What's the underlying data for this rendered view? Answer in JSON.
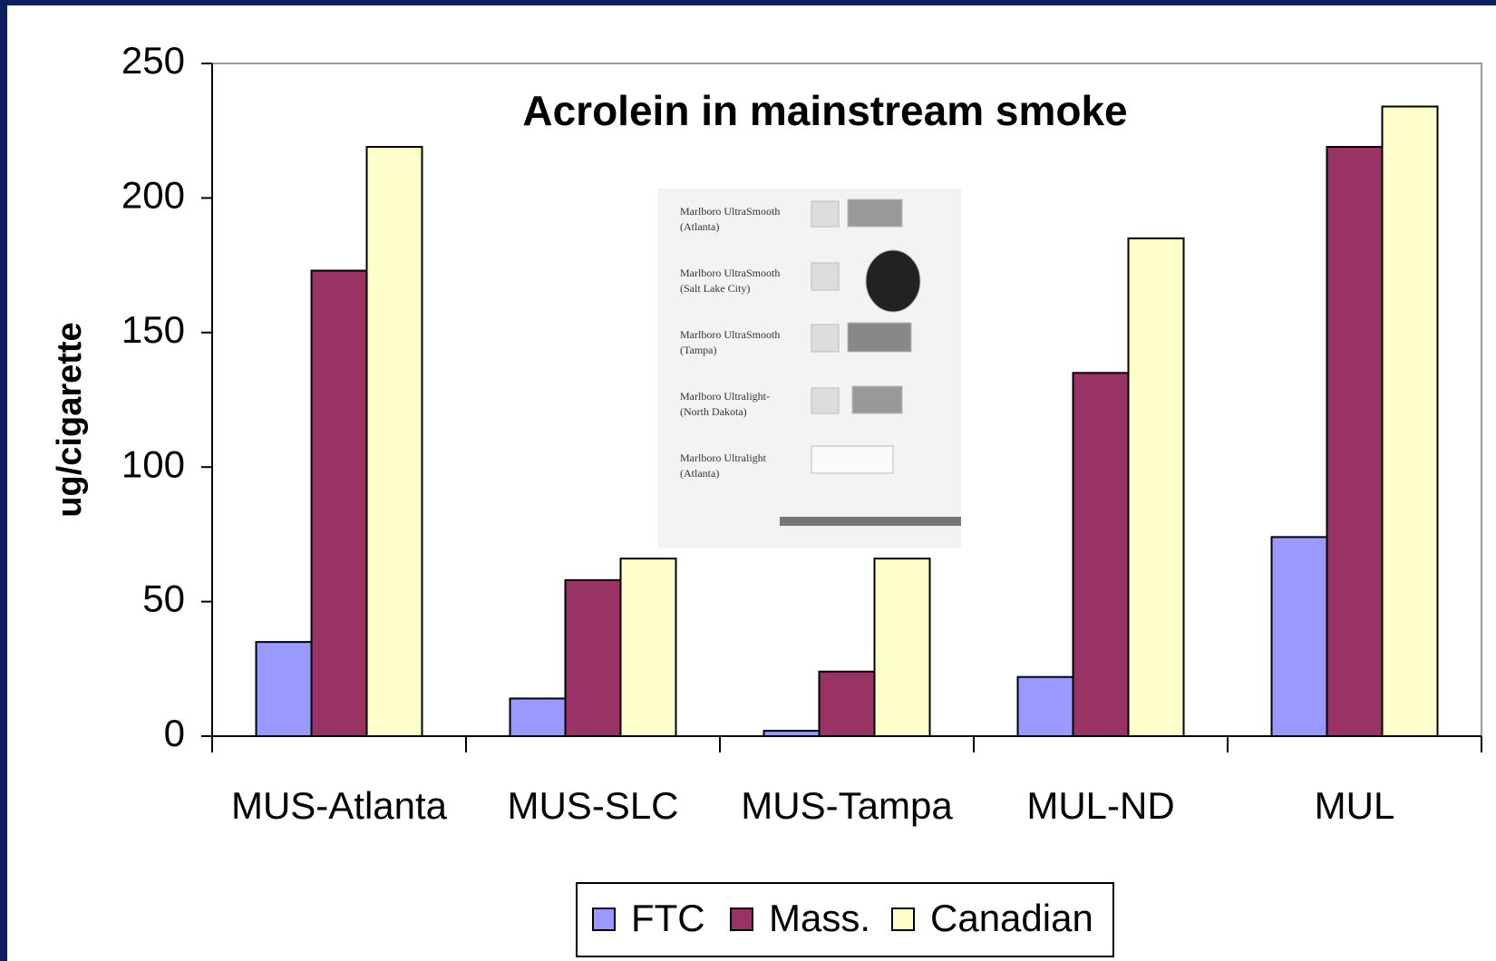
{
  "chart_data": {
    "type": "bar",
    "title": "Acrolein in mainstream smoke",
    "y_label": "ug/cigarette",
    "categories": [
      "MUS-Atlanta",
      "MUS-SLC",
      "MUS-Tampa",
      "MUL-ND",
      "MUL"
    ],
    "series": [
      {
        "name": "FTC",
        "color": "#9999ff",
        "values": [
          35,
          14,
          2,
          22,
          74
        ]
      },
      {
        "name": "Mass.",
        "color": "#993366",
        "values": [
          173,
          58,
          24,
          135,
          219
        ]
      },
      {
        "name": "Canadian",
        "color": "#ffffcc",
        "values": [
          219,
          66,
          66,
          185,
          234
        ]
      }
    ],
    "ylim": [
      0,
      250
    ],
    "yticks": [
      0,
      50,
      100,
      150,
      200,
      250
    ],
    "legend": "bottom",
    "inset_labels": [
      "Marlboro UltraSmooth",
      "(Atlanta)",
      "Marlboro UltraSmooth",
      "(Salt Lake City)",
      "Marlboro UltraSmooth",
      "(Tampa)",
      "Marlboro Ultralight-",
      "(North Dakota)",
      "Marlboro Ultralight",
      "(Atlanta)"
    ]
  }
}
